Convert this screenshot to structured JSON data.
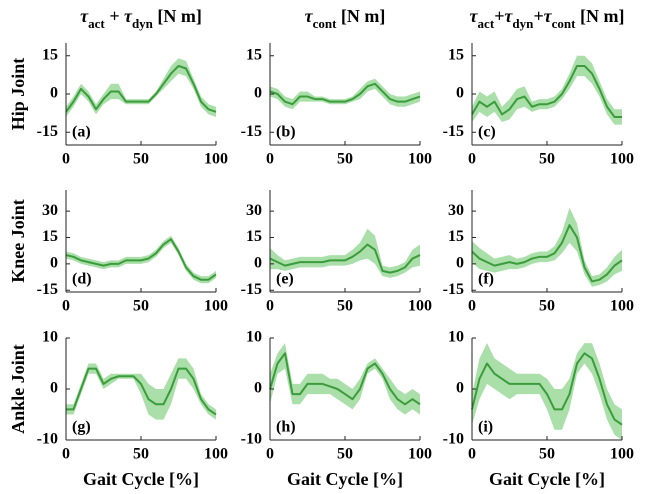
{
  "chart_data": [
    {
      "type": "line",
      "title": [
        "τ",
        "act",
        " + τ",
        "dyn",
        " [N m]"
      ],
      "ylabel": "Hip Joint",
      "annotation": "(a)",
      "color": "#3c9c3c",
      "band_color": "#8ed48e",
      "x": [
        0,
        5,
        10,
        15,
        20,
        25,
        30,
        35,
        40,
        45,
        50,
        55,
        60,
        65,
        70,
        75,
        80,
        85,
        90,
        95,
        100
      ],
      "values": [
        -7,
        -3,
        2,
        -1,
        -6,
        -2,
        1,
        1,
        -3,
        -3,
        -3,
        -3,
        0,
        4,
        8,
        11,
        10,
        4,
        -3,
        -6,
        -7
      ],
      "band": {
        "lower": [
          -9,
          -5,
          0,
          -3,
          -8,
          -4,
          -2,
          -2,
          -4,
          -4,
          -4,
          -4,
          -1,
          2,
          5,
          8,
          7,
          2,
          -5,
          -8,
          -9
        ],
        "upper": [
          -5,
          -1,
          4,
          1,
          -4,
          0,
          4,
          4,
          -2,
          -2,
          -2,
          -2,
          1,
          6,
          11,
          14,
          13,
          6,
          -1,
          -4,
          -5
        ]
      },
      "xlim": [
        0,
        100
      ],
      "xticks": [
        0,
        50,
        100
      ],
      "ylim": [
        -20,
        20
      ],
      "yticks": [
        -15,
        0,
        15
      ]
    },
    {
      "type": "line",
      "title": [
        "τ",
        "cont",
        " [N m]"
      ],
      "annotation": "(b)",
      "color": "#3c9c3c",
      "band_color": "#8ed48e",
      "x": [
        0,
        5,
        10,
        15,
        20,
        25,
        30,
        35,
        40,
        45,
        50,
        55,
        60,
        65,
        70,
        75,
        80,
        85,
        90,
        95,
        100
      ],
      "values": [
        1,
        0,
        -3,
        -4,
        -1,
        -1,
        -2,
        -2,
        -3,
        -3,
        -3,
        -2,
        0,
        3,
        4,
        1,
        -2,
        -3,
        -3,
        -2,
        -1
      ],
      "band": {
        "lower": [
          -1,
          -2,
          -5,
          -6,
          -3,
          -3,
          -3,
          -3,
          -4,
          -4,
          -4,
          -3,
          -2,
          1,
          2,
          -1,
          -4,
          -5,
          -5,
          -4,
          -3
        ],
        "upper": [
          3,
          2,
          -1,
          -2,
          1,
          1,
          -1,
          -1,
          -2,
          -2,
          -2,
          -1,
          2,
          5,
          6,
          3,
          0,
          -1,
          -1,
          0,
          1
        ]
      },
      "xlim": [
        0,
        100
      ],
      "xticks": [
        0,
        50,
        100
      ],
      "ylim": [
        -20,
        20
      ],
      "yticks": [
        -15,
        0,
        15
      ]
    },
    {
      "type": "line",
      "title": [
        "τ",
        "act",
        "+τ",
        "dyn",
        "+τ",
        "cont",
        " [N m]"
      ],
      "annotation": "(c)",
      "color": "#3c9c3c",
      "band_color": "#8ed48e",
      "x": [
        0,
        5,
        10,
        15,
        20,
        25,
        30,
        35,
        40,
        45,
        50,
        55,
        60,
        65,
        70,
        75,
        80,
        85,
        90,
        95,
        100
      ],
      "values": [
        -8,
        -3,
        -5,
        -3,
        -8,
        -6,
        -2,
        -1,
        -5,
        -4,
        -4,
        -3,
        0,
        5,
        11,
        11,
        8,
        2,
        -5,
        -9,
        -9
      ],
      "band": {
        "lower": [
          -11,
          -7,
          -9,
          -7,
          -11,
          -10,
          -6,
          -5,
          -7,
          -6,
          -6,
          -5,
          -2,
          2,
          7,
          7,
          4,
          -1,
          -8,
          -12,
          -12
        ],
        "upper": [
          -5,
          1,
          -1,
          1,
          -5,
          -2,
          2,
          3,
          -3,
          -2,
          -2,
          -1,
          2,
          8,
          15,
          15,
          12,
          5,
          -2,
          -6,
          -6
        ]
      },
      "xlim": [
        0,
        100
      ],
      "xticks": [
        0,
        50,
        100
      ],
      "ylim": [
        -20,
        20
      ],
      "yticks": [
        -15,
        0,
        15
      ]
    },
    {
      "type": "line",
      "ylabel": "Knee Joint",
      "annotation": "(d)",
      "color": "#3c9c3c",
      "band_color": "#8ed48e",
      "x": [
        0,
        5,
        10,
        15,
        20,
        25,
        30,
        35,
        40,
        45,
        50,
        55,
        60,
        65,
        70,
        75,
        80,
        85,
        90,
        95,
        100
      ],
      "values": [
        5,
        4,
        2,
        1,
        0,
        -1,
        0,
        0,
        2,
        2,
        2,
        3,
        6,
        11,
        14,
        7,
        -2,
        -7,
        -9,
        -9,
        -6
      ],
      "band": {
        "lower": [
          3,
          2,
          0,
          -1,
          -2,
          -3,
          -2,
          -2,
          0,
          0,
          0,
          1,
          4,
          9,
          12,
          5,
          -4,
          -9,
          -11,
          -11,
          -8
        ],
        "upper": [
          7,
          6,
          4,
          3,
          2,
          1,
          2,
          2,
          4,
          4,
          4,
          5,
          8,
          13,
          16,
          9,
          0,
          -5,
          -7,
          -7,
          -4
        ]
      },
      "xlim": [
        0,
        100
      ],
      "xticks": [
        0,
        50,
        100
      ],
      "ylim": [
        -16,
        42
      ],
      "yticks": [
        -15,
        0,
        15,
        30
      ]
    },
    {
      "type": "line",
      "annotation": "(e)",
      "color": "#3c9c3c",
      "band_color": "#8ed48e",
      "x": [
        0,
        5,
        10,
        15,
        20,
        25,
        30,
        35,
        40,
        45,
        50,
        55,
        60,
        65,
        70,
        75,
        80,
        85,
        90,
        95,
        100
      ],
      "values": [
        3,
        1,
        -1,
        0,
        1,
        1,
        1,
        1,
        2,
        2,
        2,
        4,
        7,
        11,
        8,
        -4,
        -5,
        -4,
        -2,
        3,
        5
      ],
      "band": {
        "lower": [
          -3,
          -3,
          -4,
          -3,
          -2,
          -2,
          -2,
          -2,
          -1,
          -1,
          -1,
          0,
          2,
          3,
          0,
          -7,
          -8,
          -7,
          -5,
          -2,
          -1
        ],
        "upper": [
          9,
          5,
          2,
          3,
          4,
          4,
          4,
          4,
          5,
          5,
          5,
          8,
          12,
          20,
          16,
          -1,
          -2,
          -1,
          1,
          8,
          11
        ]
      },
      "xlim": [
        0,
        100
      ],
      "xticks": [
        0,
        50,
        100
      ],
      "ylim": [
        -16,
        42
      ],
      "yticks": [
        -15,
        0,
        15,
        30
      ]
    },
    {
      "type": "line",
      "annotation": "(f)",
      "color": "#3c9c3c",
      "band_color": "#8ed48e",
      "x": [
        0,
        5,
        10,
        15,
        20,
        25,
        30,
        35,
        40,
        45,
        50,
        55,
        60,
        65,
        70,
        75,
        80,
        85,
        90,
        95,
        100
      ],
      "values": [
        7,
        3,
        1,
        -1,
        0,
        1,
        0,
        1,
        3,
        4,
        4,
        6,
        12,
        22,
        15,
        -2,
        -10,
        -9,
        -6,
        -1,
        2
      ],
      "band": {
        "lower": [
          1,
          -3,
          -4,
          -5,
          -4,
          -3,
          -3,
          -2,
          0,
          1,
          1,
          2,
          6,
          12,
          7,
          -6,
          -13,
          -12,
          -10,
          -6,
          -4
        ],
        "upper": [
          13,
          9,
          6,
          3,
          4,
          5,
          3,
          4,
          6,
          7,
          7,
          10,
          18,
          32,
          23,
          2,
          -7,
          -6,
          -2,
          4,
          8
        ]
      },
      "xlim": [
        0,
        100
      ],
      "xticks": [
        0,
        50,
        100
      ],
      "ylim": [
        -16,
        42
      ],
      "yticks": [
        -15,
        0,
        15,
        30
      ]
    },
    {
      "type": "line",
      "ylabel": "Ankle Joint",
      "xlabel": "Gait Cycle [%]",
      "annotation": "(g)",
      "color": "#3c9c3c",
      "band_color": "#8ed48e",
      "x": [
        0,
        5,
        10,
        15,
        20,
        25,
        30,
        35,
        40,
        45,
        50,
        55,
        60,
        65,
        70,
        75,
        80,
        85,
        90,
        95,
        100
      ],
      "values": [
        -4,
        -4,
        0,
        4,
        4,
        1,
        2,
        2.5,
        2.5,
        2.5,
        1,
        -2,
        -3,
        -3,
        0,
        4,
        4,
        2,
        -2,
        -4,
        -5
      ],
      "band": {
        "lower": [
          -5,
          -5,
          -1,
          3,
          3,
          0,
          1,
          2,
          2,
          2,
          -1,
          -5,
          -6,
          -6,
          -3,
          2,
          2,
          0,
          -3,
          -5,
          -6
        ],
        "upper": [
          -3,
          -3,
          1,
          5,
          5,
          2,
          3,
          3,
          3,
          3,
          3,
          1,
          0,
          0,
          3,
          6,
          6,
          4,
          -1,
          -3,
          -4
        ]
      },
      "xlim": [
        0,
        100
      ],
      "xticks": [
        0,
        50,
        100
      ],
      "ylim": [
        -10,
        10
      ],
      "yticks": [
        -10,
        0,
        10
      ]
    },
    {
      "type": "line",
      "xlabel": "Gait Cycle [%]",
      "annotation": "(h)",
      "color": "#3c9c3c",
      "band_color": "#8ed48e",
      "x": [
        0,
        5,
        10,
        15,
        20,
        25,
        30,
        35,
        40,
        45,
        50,
        55,
        60,
        65,
        70,
        75,
        80,
        85,
        90,
        95,
        100
      ],
      "values": [
        0,
        5,
        7,
        -1,
        -1,
        1,
        1,
        1,
        0.5,
        0,
        -1,
        -2,
        0,
        4,
        5,
        3,
        0,
        -2,
        -3,
        -2,
        -3
      ],
      "band": {
        "lower": [
          -3,
          3,
          4,
          -3,
          -3,
          -1,
          -1,
          -1,
          -1,
          -2,
          -3,
          -4,
          -2,
          3,
          4,
          2,
          -2,
          -4,
          -5,
          -4,
          -5
        ],
        "upper": [
          3,
          7,
          9,
          1,
          1,
          3,
          3,
          3,
          2,
          2,
          1,
          0,
          2,
          5,
          6,
          4,
          2,
          0,
          -1,
          0,
          -1
        ]
      },
      "xlim": [
        0,
        100
      ],
      "xticks": [
        0,
        50,
        100
      ],
      "ylim": [
        -10,
        10
      ],
      "yticks": [
        -10,
        0,
        10
      ]
    },
    {
      "type": "line",
      "xlabel": "Gait Cycle [%]",
      "annotation": "(i)",
      "color": "#3c9c3c",
      "band_color": "#8ed48e",
      "x": [
        0,
        5,
        10,
        15,
        20,
        25,
        30,
        35,
        40,
        45,
        50,
        55,
        60,
        65,
        70,
        75,
        80,
        85,
        90,
        95,
        100
      ],
      "values": [
        -4,
        2,
        5,
        3,
        2,
        1,
        1,
        1,
        1,
        1,
        -1,
        -4,
        -4,
        -1,
        5,
        7,
        6,
        2,
        -3,
        -6,
        -7
      ],
      "band": {
        "lower": [
          -7,
          -2,
          1,
          0,
          -1,
          -2,
          -1,
          -1,
          -1,
          -1,
          -4,
          -8,
          -8,
          -4,
          3,
          5,
          3,
          -1,
          -6,
          -9,
          -10
        ],
        "upper": [
          -1,
          6,
          9,
          6,
          5,
          4,
          3,
          3,
          3,
          3,
          2,
          0,
          0,
          2,
          7,
          9,
          9,
          5,
          0,
          -3,
          -4
        ]
      },
      "xlim": [
        0,
        100
      ],
      "xticks": [
        0,
        50,
        100
      ],
      "ylim": [
        -10,
        10
      ],
      "yticks": [
        -10,
        0,
        10
      ]
    }
  ]
}
